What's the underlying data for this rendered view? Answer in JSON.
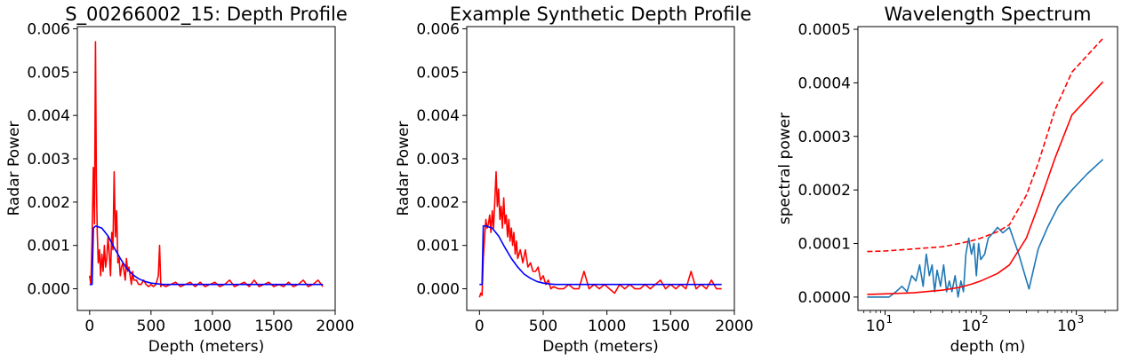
{
  "chart_data": [
    {
      "type": "line",
      "title": "S_00266002_15: Depth Profile",
      "xlabel": "Depth (meters)",
      "ylabel": "Radar Power",
      "xlim": [
        -100,
        2000
      ],
      "ylim": [
        -0.0005,
        0.00605
      ],
      "xticks": [
        0,
        500,
        1000,
        1500,
        2000
      ],
      "xtick_labels": [
        "0",
        "500",
        "1000",
        "1500",
        "2000"
      ],
      "yticks": [
        0,
        0.001,
        0.002,
        0.003,
        0.004,
        0.005,
        0.006
      ],
      "ytick_labels": [
        "0.000",
        "0.001",
        "0.002",
        "0.003",
        "0.004",
        "0.005",
        "0.006"
      ],
      "grid": false,
      "series": [
        {
          "color": "#ff0000",
          "x": [
            0,
            10,
            20,
            30,
            40,
            48,
            55,
            62,
            70,
            80,
            90,
            100,
            110,
            120,
            130,
            140,
            150,
            160,
            170,
            180,
            190,
            200,
            210,
            220,
            230,
            240,
            250,
            260,
            270,
            280,
            290,
            300,
            310,
            320,
            330,
            340,
            350,
            360,
            380,
            400,
            420,
            440,
            460,
            480,
            500,
            520,
            540,
            560,
            570,
            580,
            590,
            620,
            660,
            700,
            740,
            780,
            820,
            860,
            900,
            940,
            980,
            1020,
            1060,
            1100,
            1140,
            1180,
            1220,
            1260,
            1300,
            1340,
            1380,
            1420,
            1460,
            1500,
            1540,
            1580,
            1620,
            1660,
            1700,
            1740,
            1780,
            1820,
            1860,
            1900
          ],
          "y": [
            0.0003,
            0.0001,
            0.0012,
            0.0028,
            0.0015,
            0.0057,
            0.0025,
            0.0013,
            0.0006,
            0.0009,
            0.0003,
            0.0008,
            0.0004,
            0.001,
            0.0005,
            0.0007,
            0.0012,
            0.0008,
            0.0003,
            0.0013,
            0.0009,
            0.0027,
            0.0012,
            0.0018,
            0.0006,
            0.0007,
            0.0003,
            0.0005,
            0.0006,
            0.0004,
            0.0002,
            0.0007,
            0.0004,
            0.0005,
            0.0003,
            0.0001,
            0.0004,
            0.0002,
            0.0002,
            0.0001,
            0.0001,
            0.0002,
            0.0001,
            5e-05,
            0.0001,
            5e-05,
            0.0001,
            0.0003,
            0.001,
            5e-05,
            0.0001,
            5e-05,
            0.0001,
            0.00015,
            5e-05,
            0.0001,
            0.00015,
            5e-05,
            0.00015,
            5e-05,
            0.0001,
            0.00015,
            5e-05,
            0.0001,
            0.0002,
            5e-05,
            0.0001,
            0.00015,
            5e-05,
            0.0002,
            5e-05,
            0.0001,
            0.00015,
            5e-05,
            0.0001,
            5e-05,
            0.00015,
            5e-05,
            0.0001,
            0.0002,
            5e-05,
            0.0001,
            0.0002,
            5e-05
          ]
        },
        {
          "color": "#0000ff",
          "x": [
            0,
            20,
            30,
            50,
            100,
            150,
            200,
            250,
            300,
            350,
            400,
            450,
            500,
            600,
            700,
            800,
            1000,
            1200,
            1500,
            1900
          ],
          "y": [
            0.0001,
            0.0001,
            0.0014,
            0.00145,
            0.0014,
            0.00122,
            0.00095,
            0.0007,
            0.00048,
            0.00033,
            0.00023,
            0.00017,
            0.00013,
            0.0001,
            0.0001,
            0.0001,
            0.0001,
            0.0001,
            0.0001,
            0.0001
          ]
        }
      ]
    },
    {
      "type": "line",
      "title": "Example Synthetic Depth Profile",
      "xlabel": "Depth (meters)",
      "ylabel": "Radar Power",
      "xlim": [
        -100,
        2000
      ],
      "ylim": [
        -0.0005,
        0.00605
      ],
      "xticks": [
        0,
        500,
        1000,
        1500,
        2000
      ],
      "xtick_labels": [
        "0",
        "500",
        "1000",
        "1500",
        "2000"
      ],
      "yticks": [
        0,
        0.001,
        0.002,
        0.003,
        0.004,
        0.005,
        0.006
      ],
      "ytick_labels": [
        "0.000",
        "0.001",
        "0.002",
        "0.003",
        "0.004",
        "0.005",
        "0.006"
      ],
      "grid": false,
      "series": [
        {
          "color": "#ff0000",
          "x": [
            0,
            10,
            20,
            30,
            40,
            50,
            60,
            70,
            80,
            90,
            100,
            110,
            120,
            130,
            140,
            150,
            160,
            170,
            180,
            190,
            200,
            210,
            220,
            230,
            240,
            250,
            260,
            270,
            280,
            290,
            300,
            320,
            340,
            360,
            380,
            400,
            420,
            440,
            460,
            480,
            500,
            520,
            540,
            560,
            580,
            620,
            660,
            700,
            740,
            780,
            820,
            860,
            900,
            940,
            980,
            1020,
            1060,
            1100,
            1140,
            1180,
            1220,
            1260,
            1300,
            1340,
            1380,
            1420,
            1460,
            1500,
            1540,
            1580,
            1620,
            1660,
            1700,
            1740,
            1780,
            1820,
            1860,
            1900
          ],
          "y": [
            -0.0002,
            -0.0001,
            -0.00015,
            0.0007,
            0.0012,
            0.0016,
            0.0014,
            0.0015,
            0.0017,
            0.0013,
            0.0018,
            0.0014,
            0.002,
            0.0027,
            0.0019,
            0.0023,
            0.0016,
            0.0019,
            0.0014,
            0.0021,
            0.0015,
            0.0017,
            0.0012,
            0.0016,
            0.0011,
            0.0014,
            0.001,
            0.0013,
            0.0008,
            0.0011,
            0.0007,
            0.0009,
            0.0006,
            0.0009,
            0.0005,
            0.0006,
            0.0004,
            0.0004,
            0.0005,
            0.0002,
            0.0003,
            0.0001,
            0.0002,
            0.0,
            5e-05,
            0.0,
            0.0,
            0.0001,
            0.0,
            0.0,
            0.0004,
            0.0,
            0.0001,
            0.0,
            0.0001,
            0.0,
            -0.0001,
            0.0001,
            0.0,
            0.0001,
            0.0,
            0.0,
            0.0001,
            0.0,
            0.0001,
            0.0002,
            0.0,
            0.0001,
            0.0,
            0.0001,
            0.0,
            0.0004,
            0.0,
            0.0001,
            0.0,
            0.0002,
            0.0,
            0.0
          ]
        },
        {
          "color": "#0000ff",
          "x": [
            0,
            20,
            30,
            50,
            100,
            150,
            200,
            250,
            300,
            350,
            400,
            450,
            500,
            550,
            600,
            700,
            800,
            1000,
            1200,
            1500,
            1900
          ],
          "y": [
            0.0001,
            0.0001,
            0.00145,
            0.00145,
            0.0014,
            0.00122,
            0.00095,
            0.0007,
            0.0005,
            0.00034,
            0.00024,
            0.00017,
            0.00013,
            0.00011,
            0.0001,
            0.0001,
            0.0001,
            0.0001,
            0.0001,
            0.0001,
            0.0001
          ]
        }
      ]
    },
    {
      "type": "line",
      "title": "Wavelength Spectrum",
      "xlabel": "depth (m)",
      "ylabel": "spectral power",
      "xscale": "log",
      "xlim": [
        5.2,
        2700
      ],
      "ylim": [
        -2.5e-05,
        0.000505
      ],
      "xticks": [
        10,
        100,
        1000
      ],
      "xtick_labels": [
        "10",
        "10",
        "10"
      ],
      "xtick_exponents": [
        "1",
        "2",
        "3"
      ],
      "yticks": [
        0,
        0.0001,
        0.0002,
        0.0003,
        0.0004,
        0.0005
      ],
      "ytick_labels": [
        "0.0000",
        "0.0001",
        "0.0002",
        "0.0003",
        "0.0004",
        "0.0005"
      ],
      "grid": false,
      "series": [
        {
          "color": "#1f77b4",
          "style": "solid",
          "x": [
            6.5,
            9,
            11,
            13,
            15,
            17,
            19,
            21,
            23,
            25,
            27,
            29,
            31,
            33,
            35,
            38,
            41,
            44,
            47,
            50,
            54,
            58,
            62,
            66,
            70,
            75,
            80,
            85,
            90,
            95,
            100,
            110,
            120,
            135,
            150,
            170,
            200,
            250,
            320,
            400,
            500,
            650,
            900,
            1300,
            1900
          ],
          "y": [
            0.0,
            0.0,
            0.0,
            1e-05,
            2e-05,
            1e-05,
            4e-05,
            3e-05,
            6e-05,
            2e-05,
            8e-05,
            4e-05,
            6e-05,
            1e-05,
            5e-05,
            2e-05,
            6e-05,
            1e-05,
            3e-05,
            1e-05,
            4e-05,
            0.0,
            3e-05,
            1e-05,
            8e-05,
            0.00011,
            8e-05,
            0.0001,
            4e-05,
            0.0001,
            7e-05,
            8e-05,
            0.00011,
            0.00012,
            0.00013,
            0.00012,
            0.00013,
            8e-05,
            1.5e-05,
            9e-05,
            0.00013,
            0.00017,
            0.0002,
            0.00023,
            0.000257
          ]
        },
        {
          "color": "#ff0000",
          "style": "solid",
          "x": [
            6.5,
            10,
            20,
            40,
            60,
            80,
            100,
            150,
            200,
            300,
            400,
            600,
            900,
            1900
          ],
          "y": [
            5e-06,
            6e-06,
            8e-06,
            1.3e-05,
            1.8e-05,
            2.4e-05,
            3e-05,
            4.4e-05,
            6e-05,
            0.00011,
            0.00017,
            0.00026,
            0.00034,
            0.000402
          ]
        },
        {
          "color": "#ff0000",
          "style": "dashed",
          "x": [
            6.5,
            10,
            20,
            40,
            60,
            80,
            100,
            150,
            200,
            300,
            400,
            600,
            900,
            1900
          ],
          "y": [
            8.5e-05,
            8.6e-05,
            9e-05,
            9.4e-05,
            0.0001,
            0.000105,
            0.00011,
            0.000122,
            0.000135,
            0.00019,
            0.00025,
            0.00035,
            0.00042,
            0.000483
          ]
        }
      ]
    }
  ]
}
